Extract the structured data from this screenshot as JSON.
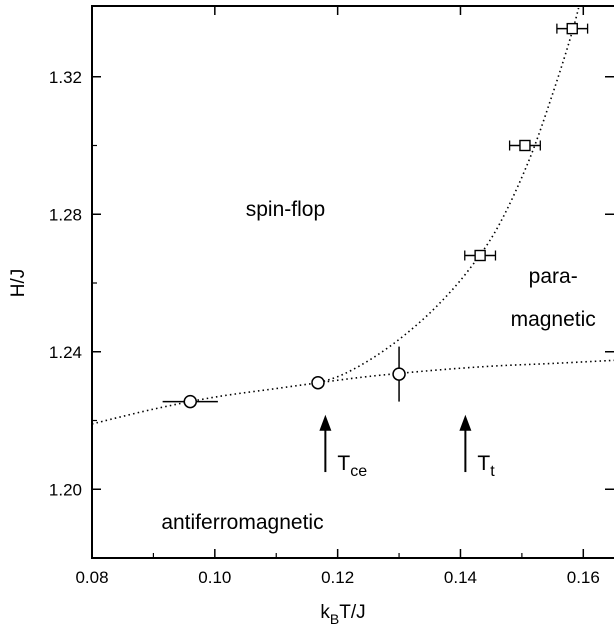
{
  "chart_data": {
    "type": "scatter",
    "title": "",
    "xlabel": {
      "main": "k",
      "sub": "B",
      "rest": "T/J"
    },
    "ylabel": "H/J",
    "xlim": [
      0.08,
      0.165
    ],
    "ylim": [
      1.18,
      1.34
    ],
    "xticks": [
      0.08,
      0.1,
      0.12,
      0.14,
      0.16
    ],
    "xtick_labels": [
      "0.08",
      "0.10",
      "0.12",
      "0.14",
      "0.16"
    ],
    "yticks": [
      1.2,
      1.24,
      1.28,
      1.32
    ],
    "ytick_labels": [
      "1.20",
      "1.24",
      "1.28",
      "1.32"
    ],
    "grid": false,
    "series": [
      {
        "marker": "circle",
        "points": [
          {
            "x": 0.096,
            "y": 1.2255,
            "xerr": 0.0045,
            "yerr": 0
          },
          {
            "x": 0.1168,
            "y": 1.231,
            "xerr": 0,
            "yerr": 0
          },
          {
            "x": 0.13,
            "y": 1.2335,
            "xerr": 0,
            "yerr": 0.008
          }
        ]
      },
      {
        "marker": "square",
        "points": [
          {
            "x": 0.1432,
            "y": 1.268,
            "xerr": 0.0025,
            "yerr": 0
          },
          {
            "x": 0.1505,
            "y": 1.3,
            "xerr": 0.0025,
            "yerr": 0
          },
          {
            "x": 0.1582,
            "y": 1.334,
            "xerr": 0.0025,
            "yerr": 0
          }
        ]
      }
    ],
    "curves": [
      {
        "style": "dotted",
        "x": [
          0.08,
          0.09,
          0.1,
          0.11,
          0.117,
          0.125,
          0.135,
          0.145,
          0.155,
          0.165
        ],
        "y": [
          1.219,
          1.2233,
          1.2268,
          1.2293,
          1.231,
          1.2328,
          1.2345,
          1.2358,
          1.2366,
          1.2375
        ]
      },
      {
        "style": "dotted",
        "x": [
          0.117,
          0.121,
          0.126,
          0.131,
          0.136,
          0.141,
          0.146,
          0.151,
          0.155,
          0.1585,
          0.1605
        ],
        "y": [
          1.231,
          1.2335,
          1.2385,
          1.245,
          1.253,
          1.263,
          1.276,
          1.295,
          1.315,
          1.335,
          1.35
        ]
      }
    ],
    "annotations": [
      {
        "text": "spin-flop",
        "x": 0.1115,
        "y": 1.2795
      },
      {
        "text": "para-",
        "x": 0.1551,
        "y": 1.26
      },
      {
        "text": "magnetic",
        "x": 0.1551,
        "y": 1.2475
      },
      {
        "text": "antiferromagnetic",
        "x": 0.1045,
        "y": 1.1885
      }
    ],
    "arrows": [
      {
        "x": 0.118,
        "y_from": 1.205,
        "y_to": 1.2205,
        "label_main": "T",
        "label_sub": "ce"
      },
      {
        "x": 0.1408,
        "y_from": 1.205,
        "y_to": 1.2205,
        "label_main": "T",
        "label_sub": "t"
      }
    ]
  }
}
